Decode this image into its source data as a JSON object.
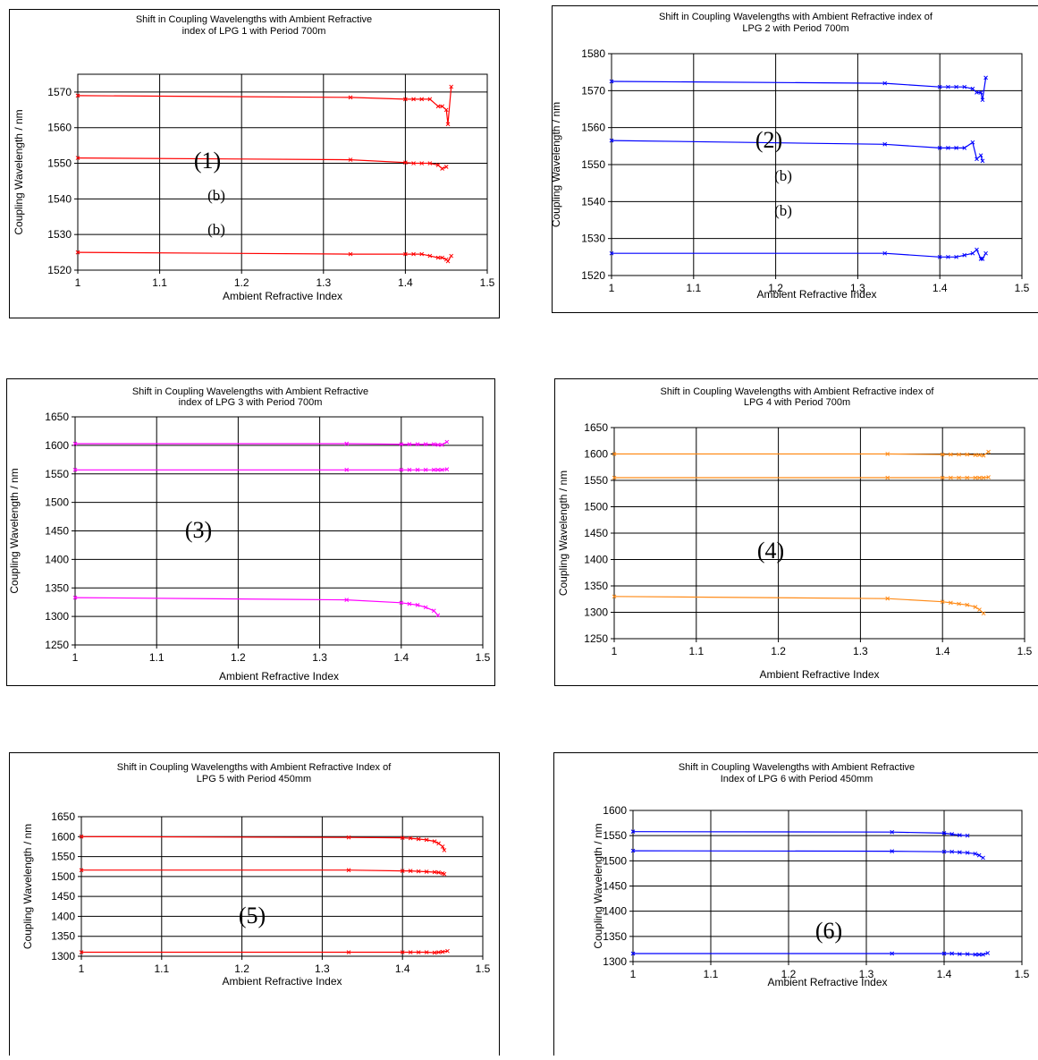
{
  "chart_data": [
    {
      "type": "line",
      "title": "Shift in Coupling Wavelengths with Ambient Refractive index of LPG 1 with Period 700m",
      "title_lines": [
        "Shift in Coupling Wavelengths with Ambient Refractive",
        "index of LPG 1 with Period 700m"
      ],
      "xlabel": "Ambient Refractive Index",
      "ylabel": "Coupling Wavelength / nm",
      "xlim": [
        1,
        1.5
      ],
      "ylim": [
        1520,
        1575
      ],
      "xticks": [
        "1",
        "1.1",
        "1.2",
        "1.3",
        "1.4",
        "1.5"
      ],
      "yticks": [
        "1520",
        "1530",
        "1540",
        "1550",
        "1560",
        "1570"
      ],
      "grid": true,
      "color": "#ff0000",
      "annotations": [
        "(1)",
        "(b)",
        "(b)"
      ],
      "series": [
        {
          "x": [
            1,
            1.333,
            1.4,
            1.41,
            1.42,
            1.43,
            1.44,
            1.445,
            1.45,
            1.452,
            1.456
          ],
          "y": [
            1569,
            1568.5,
            1568,
            1568,
            1568,
            1568,
            1566,
            1566,
            1565,
            1561,
            1571.5
          ]
        },
        {
          "x": [
            1,
            1.333,
            1.4,
            1.41,
            1.42,
            1.43,
            1.44,
            1.445,
            1.45
          ],
          "y": [
            1551.5,
            1551,
            1550.2,
            1550,
            1550,
            1550,
            1549.5,
            1548.5,
            1549
          ]
        },
        {
          "x": [
            1,
            1.333,
            1.4,
            1.41,
            1.42,
            1.43,
            1.44,
            1.445,
            1.45,
            1.452,
            1.456
          ],
          "y": [
            1525,
            1524.5,
            1524.5,
            1524.5,
            1524.5,
            1524,
            1523.5,
            1523.5,
            1523,
            1522.5,
            1524
          ]
        }
      ]
    },
    {
      "type": "line",
      "title": "Shift in Coupling Wavelengths with Ambient Refractive index of LPG 2 with Period 700m",
      "title_lines": [
        "Shift in Coupling Wavelengths with Ambient Refractive index of",
        "LPG 2 with Period 700m"
      ],
      "xlabel": "Ambient Refractive Index",
      "ylabel": "Coupling Wavelength / nm",
      "xlim": [
        1,
        1.5
      ],
      "ylim": [
        1520,
        1580
      ],
      "xticks": [
        "1",
        "1.1",
        "1.2",
        "1.3",
        "1.4",
        "1.5"
      ],
      "yticks": [
        "1520",
        "1530",
        "1540",
        "1550",
        "1560",
        "1570",
        "1580"
      ],
      "grid": true,
      "color": "#0000ff",
      "annotations": [
        "(2)",
        "(b)",
        "(b)"
      ],
      "series": [
        {
          "x": [
            1,
            1.333,
            1.4,
            1.41,
            1.42,
            1.43,
            1.44,
            1.445,
            1.45,
            1.452,
            1.456
          ],
          "y": [
            1572.5,
            1572,
            1571,
            1571,
            1571,
            1571,
            1570.5,
            1569.5,
            1569.5,
            1567.5,
            1573.5
          ]
        },
        {
          "x": [
            1,
            1.333,
            1.4,
            1.41,
            1.42,
            1.43,
            1.44,
            1.445,
            1.45,
            1.452
          ],
          "y": [
            1556.5,
            1555.5,
            1554.5,
            1554.5,
            1554.5,
            1554.5,
            1556,
            1551.5,
            1552.5,
            1551
          ]
        },
        {
          "x": [
            1,
            1.333,
            1.4,
            1.41,
            1.42,
            1.43,
            1.44,
            1.445,
            1.45,
            1.452,
            1.456
          ],
          "y": [
            1526,
            1526,
            1525,
            1525,
            1525,
            1525.5,
            1526,
            1527,
            1524.5,
            1524.5,
            1526
          ]
        }
      ]
    },
    {
      "type": "line",
      "title": "Shift in Coupling Wavelengths with Ambient Refractive index of LPG 3 with Period 700m",
      "title_lines": [
        "Shift in Coupling Wavelengths with Ambient Refractive",
        "index of LPG 3 with Period 700m"
      ],
      "xlabel": "Ambient Refractive Index",
      "ylabel": "Coupling Wavelength / nm",
      "xlim": [
        1,
        1.5
      ],
      "ylim": [
        1250,
        1650
      ],
      "xticks": [
        "1",
        "1.1",
        "1.2",
        "1.3",
        "1.4",
        "1.5"
      ],
      "yticks": [
        "1250",
        "1300",
        "1350",
        "1400",
        "1450",
        "1500",
        "1550",
        "1600",
        "1650"
      ],
      "grid": true,
      "color": "#ff00ff",
      "annotations": [
        "(3)"
      ],
      "series": [
        {
          "x": [
            1,
            1.333,
            1.4,
            1.41,
            1.42,
            1.43,
            1.44,
            1.445,
            1.45,
            1.456
          ],
          "y": [
            1603,
            1603,
            1602,
            1602,
            1602,
            1602,
            1602,
            1601,
            1601,
            1606
          ]
        },
        {
          "x": [
            1,
            1.333,
            1.4,
            1.41,
            1.42,
            1.43,
            1.44,
            1.445,
            1.45,
            1.456
          ],
          "y": [
            1557,
            1557,
            1557,
            1557,
            1557,
            1557,
            1557,
            1557,
            1557,
            1558
          ]
        },
        {
          "x": [
            1,
            1.333,
            1.4,
            1.41,
            1.42,
            1.43,
            1.44,
            1.445
          ],
          "y": [
            1333,
            1329,
            1324,
            1322,
            1320,
            1316,
            1310,
            1302
          ]
        }
      ]
    },
    {
      "type": "line",
      "title": "Shift in Coupling Wavelengths with Ambient Refractive index of LPG 4 with Period 700m",
      "title_lines": [
        "Shift in Coupling Wavelengths with Ambient Refractive index of",
        "LPG 4 with Period 700m"
      ],
      "xlabel": "Ambient Refractive Index",
      "ylabel": "Coupling Wavelength / nm",
      "xlim": [
        1,
        1.5
      ],
      "ylim": [
        1250,
        1650
      ],
      "xticks": [
        "1",
        "1.1",
        "1.2",
        "1.3",
        "1.4",
        "1.5"
      ],
      "yticks": [
        "1250",
        "1300",
        "1350",
        "1400",
        "1450",
        "1500",
        "1550",
        "1600",
        "1650"
      ],
      "grid": true,
      "color": "#ff8c1a",
      "annotations": [
        "(4)"
      ],
      "series": [
        {
          "x": [
            1,
            1.333,
            1.4,
            1.41,
            1.42,
            1.43,
            1.44,
            1.445,
            1.45,
            1.456
          ],
          "y": [
            1600,
            1600,
            1599,
            1599,
            1599,
            1599,
            1598,
            1598,
            1597,
            1604
          ]
        },
        {
          "x": [
            1,
            1.333,
            1.4,
            1.41,
            1.42,
            1.43,
            1.44,
            1.445,
            1.45,
            1.456
          ],
          "y": [
            1555,
            1555,
            1555,
            1555,
            1555,
            1555,
            1555,
            1555,
            1555,
            1556
          ]
        },
        {
          "x": [
            1,
            1.333,
            1.4,
            1.41,
            1.42,
            1.43,
            1.44,
            1.445,
            1.45
          ],
          "y": [
            1330,
            1326,
            1320,
            1318,
            1316,
            1314,
            1310,
            1305,
            1298
          ]
        }
      ]
    },
    {
      "type": "line",
      "title": "Shift in Coupling Wavelengths with Ambient Refractive Index of LPG 5 with Period 450mm",
      "title_lines": [
        "Shift in Coupling Wavelengths with Ambient Refractive Index of",
        "LPG 5 with Period 450mm"
      ],
      "xlabel": "Ambient Refractive Index",
      "ylabel": "Coupling Wavelength / nm",
      "xlim": [
        1,
        1.5
      ],
      "ylim": [
        1300,
        1650
      ],
      "xticks": [
        "1",
        "1.1",
        "1.2",
        "1.3",
        "1.4",
        "1.5"
      ],
      "yticks": [
        "1300",
        "1350",
        "1400",
        "1450",
        "1500",
        "1550",
        "1600",
        "1650"
      ],
      "grid": true,
      "color": "#ff0000",
      "annotations": [
        "(5)"
      ],
      "series": [
        {
          "x": [
            1,
            1.333,
            1.4,
            1.41,
            1.42,
            1.43,
            1.44,
            1.445,
            1.45,
            1.452
          ],
          "y": [
            1600,
            1598,
            1597,
            1596,
            1594,
            1592,
            1588,
            1583,
            1575,
            1566
          ]
        },
        {
          "x": [
            1,
            1.333,
            1.4,
            1.41,
            1.42,
            1.43,
            1.44,
            1.445,
            1.45,
            1.452
          ],
          "y": [
            1516,
            1516,
            1514,
            1514,
            1513,
            1512,
            1511,
            1510,
            1508,
            1506
          ]
        },
        {
          "x": [
            1,
            1.333,
            1.4,
            1.41,
            1.42,
            1.43,
            1.44,
            1.445,
            1.45,
            1.456
          ],
          "y": [
            1310,
            1310,
            1310,
            1310,
            1310,
            1310,
            1309,
            1310,
            1311,
            1313
          ]
        }
      ]
    },
    {
      "type": "line",
      "title": "Shift in Coupling Wavelengths with Ambient Refractive Index of LPG 6 with Period 450mm",
      "title_lines": [
        "Shift in Coupling Wavelengths with Ambient Refractive",
        "Index of LPG 6 with Period 450mm"
      ],
      "xlabel": "Ambient Refractive Index",
      "ylabel": "Coupling Wavelength / nm",
      "xlim": [
        1,
        1.5
      ],
      "ylim": [
        1300,
        1600
      ],
      "xticks": [
        "1",
        "1.1",
        "1.2",
        "1.3",
        "1.4",
        "1.5"
      ],
      "yticks": [
        "1300",
        "1350",
        "1400",
        "1450",
        "1500",
        "1550",
        "1600"
      ],
      "grid": true,
      "color": "#0000ff",
      "annotations": [
        "(6)"
      ],
      "series": [
        {
          "x": [
            1,
            1.333,
            1.4,
            1.41,
            1.42,
            1.43
          ],
          "y": [
            1558,
            1557,
            1555,
            1553,
            1551,
            1550
          ]
        },
        {
          "x": [
            1,
            1.333,
            1.4,
            1.41,
            1.42,
            1.43,
            1.44,
            1.445,
            1.45
          ],
          "y": [
            1520,
            1519,
            1518,
            1518,
            1517,
            1516,
            1514,
            1511,
            1506
          ]
        },
        {
          "x": [
            1,
            1.333,
            1.4,
            1.41,
            1.42,
            1.43,
            1.44,
            1.445,
            1.45,
            1.456
          ],
          "y": [
            1316,
            1316,
            1316,
            1316,
            1315,
            1315,
            1314,
            1314,
            1314,
            1317
          ]
        }
      ]
    }
  ]
}
